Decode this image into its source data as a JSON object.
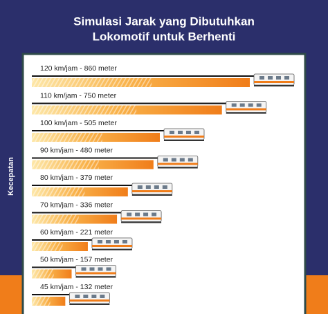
{
  "chart_data": {
    "type": "bar",
    "title": [
      "Simulasi Jarak yang Dibutuhkan",
      "Lokomotif untuk Berhenti"
    ],
    "y_label": "Kecepatan",
    "categories": [
      "120 km/jam - 860 meter",
      "110 km/jam - 750 meter",
      "100 km/jam - 505 meter",
      "90 km/jam - 480 meter",
      "80 km/jam - 379 meter",
      "70 km/jam - 336 meter",
      "60 km/jam - 221 meter",
      "50 km/jam - 157 meter",
      "45 km/jam - 132 meter"
    ],
    "values": [
      860,
      750,
      505,
      480,
      379,
      336,
      221,
      157,
      132
    ],
    "color": "#f07d1a"
  }
}
